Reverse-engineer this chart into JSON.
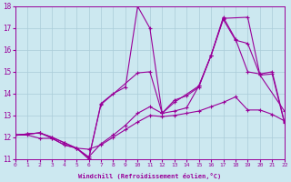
{
  "xlabel": "Windchill (Refroidissement éolien,°C)",
  "xlim": [
    0,
    22
  ],
  "ylim": [
    11,
    18
  ],
  "yticks": [
    11,
    12,
    13,
    14,
    15,
    16,
    17,
    18
  ],
  "xticks": [
    0,
    1,
    2,
    3,
    4,
    5,
    6,
    7,
    8,
    9,
    10,
    11,
    12,
    13,
    14,
    15,
    16,
    17,
    18,
    19,
    20,
    21,
    22
  ],
  "bg_color": "#cce8f0",
  "grid_color": "#aaccd8",
  "line_color": "#990099",
  "line1_x": [
    0,
    1,
    2,
    3,
    4,
    5,
    6,
    7,
    8,
    9,
    10,
    11,
    12,
    13,
    14,
    15,
    16,
    17,
    18,
    19,
    20,
    21,
    22
  ],
  "line1_y": [
    12.1,
    12.15,
    12.2,
    12.0,
    11.75,
    11.5,
    11.0,
    13.55,
    14.0,
    14.3,
    18.0,
    17.0,
    13.1,
    13.7,
    13.9,
    14.3,
    15.75,
    17.5,
    16.5,
    15.0,
    14.9,
    15.0,
    12.7
  ],
  "line2_x": [
    0,
    1,
    2,
    3,
    4,
    5,
    6,
    7,
    8,
    9,
    10,
    11,
    12,
    13,
    14,
    15,
    16,
    17,
    18,
    19,
    20,
    21,
    22
  ],
  "line2_y": [
    12.1,
    12.15,
    12.2,
    12.0,
    11.75,
    11.5,
    11.1,
    11.7,
    12.1,
    12.55,
    13.1,
    13.4,
    13.1,
    13.2,
    13.35,
    14.35,
    15.75,
    17.4,
    16.45,
    16.3,
    14.85,
    14.9,
    12.65
  ],
  "line3_x": [
    0,
    1,
    2,
    3,
    4,
    5,
    6,
    7,
    8,
    9,
    10,
    11,
    12,
    13,
    14,
    15,
    16,
    17,
    18,
    19,
    20,
    21,
    22
  ],
  "line3_y": [
    12.1,
    12.1,
    11.95,
    11.95,
    11.65,
    11.5,
    11.45,
    11.65,
    12.0,
    12.35,
    12.7,
    13.0,
    12.95,
    13.0,
    13.1,
    13.2,
    13.4,
    13.6,
    13.85,
    13.25,
    13.25,
    13.05,
    12.75
  ],
  "line4_x": [
    0,
    2,
    3,
    4,
    5,
    6,
    7,
    10,
    11,
    12,
    13,
    15,
    16,
    17,
    19,
    20,
    22
  ],
  "line4_y": [
    12.1,
    12.2,
    11.95,
    11.65,
    11.5,
    11.05,
    13.5,
    14.95,
    15.0,
    13.1,
    13.6,
    14.35,
    15.75,
    17.45,
    17.5,
    14.85,
    13.2
  ]
}
